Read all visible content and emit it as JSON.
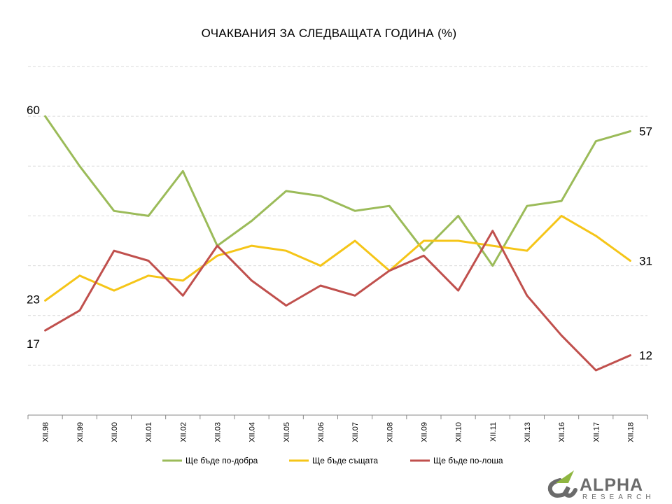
{
  "chart_data": {
    "type": "line",
    "title": "ОЧАКВАНИЯ  ЗА СЛЕДВАЩАТА  ГОДИНА (%)",
    "categories": [
      "XII.98",
      "XII.99",
      "XII.00",
      "XII.01",
      "XII.02",
      "XII.03",
      "XII.04",
      "XII.05",
      "XII.06",
      "XII.07",
      "XII.08",
      "XII.09",
      "XII.10",
      "XII.11",
      "XII.13",
      "XII.16",
      "XII.17",
      "XII.18"
    ],
    "ylim": [
      0,
      70
    ],
    "grid": true,
    "legend_position": "bottom",
    "series": [
      {
        "name": "Ще бъде по-добра",
        "color": "#9bbb59",
        "values": [
          60,
          50,
          41,
          40,
          49,
          34,
          39,
          45,
          44,
          41,
          42,
          33,
          40,
          30,
          42,
          43,
          55,
          57
        ]
      },
      {
        "name": "Ще бъде същата",
        "color": "#f5c518",
        "values": [
          23,
          28,
          25,
          28,
          27,
          32,
          34,
          33,
          30,
          35,
          29,
          35,
          35,
          34,
          33,
          40,
          36,
          31
        ]
      },
      {
        "name": "Ще бъде по-лоша",
        "color": "#c0504d",
        "values": [
          17,
          21,
          33,
          31,
          24,
          34,
          27,
          22,
          26,
          24,
          29,
          32,
          25,
          37,
          24,
          16,
          9,
          12
        ]
      }
    ],
    "end_labels": {
      "left": [
        "60",
        "23",
        "17"
      ],
      "right": [
        "57",
        "31",
        "12"
      ]
    }
  },
  "brand": {
    "name": "ALPHA",
    "sub": "RESEARCH",
    "colors": {
      "primary": "#6b6b6b",
      "accent": "#8fb640"
    }
  }
}
